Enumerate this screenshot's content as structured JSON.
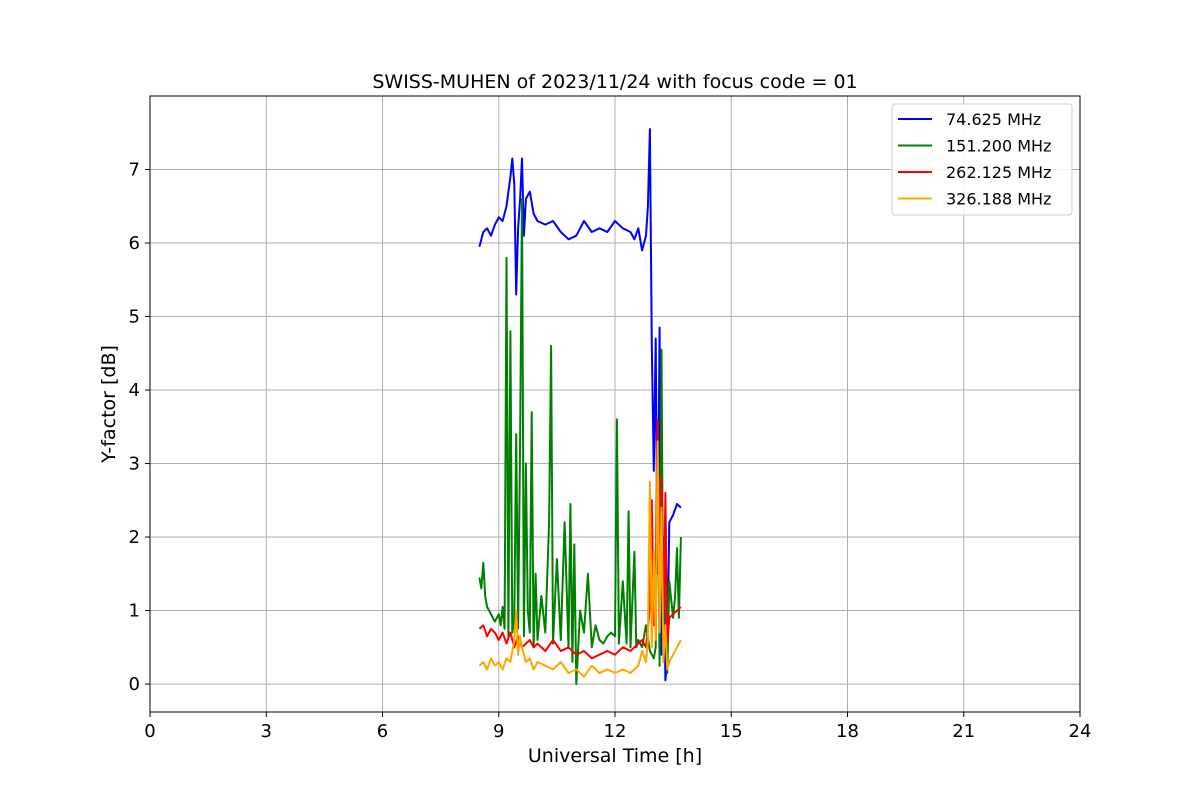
{
  "chart_data": {
    "type": "line",
    "title": "SWISS-MUHEN of 2023/11/24 with focus code = 01",
    "xlabel": "Universal Time [h]",
    "ylabel": "Y-factor [dB]",
    "xlim": [
      0,
      24
    ],
    "ylim": [
      -0.38,
      8.0
    ],
    "xticks": [
      0,
      3,
      6,
      9,
      12,
      15,
      18,
      21,
      24
    ],
    "yticks": [
      0,
      1,
      2,
      3,
      4,
      5,
      6,
      7
    ],
    "grid": true,
    "legend": "top-right",
    "series": [
      {
        "name": " 74.625 MHz",
        "color": "#0000ff",
        "x": [
          8.5,
          8.6,
          8.7,
          8.8,
          8.9,
          9.0,
          9.1,
          9.2,
          9.3,
          9.35,
          9.4,
          9.45,
          9.5,
          9.55,
          9.6,
          9.65,
          9.7,
          9.8,
          9.9,
          10.0,
          10.2,
          10.4,
          10.6,
          10.8,
          11.0,
          11.2,
          11.4,
          11.6,
          11.8,
          12.0,
          12.2,
          12.4,
          12.5,
          12.6,
          12.7,
          12.8,
          12.85,
          12.9,
          12.95,
          13.0,
          13.05,
          13.1,
          13.15,
          13.2,
          13.25,
          13.3,
          13.35,
          13.4,
          13.5,
          13.6,
          13.7
        ],
        "y": [
          5.95,
          6.15,
          6.2,
          6.1,
          6.25,
          6.35,
          6.3,
          6.5,
          6.9,
          7.15,
          6.8,
          5.3,
          6.2,
          6.6,
          7.15,
          6.1,
          6.6,
          6.7,
          6.4,
          6.3,
          6.25,
          6.3,
          6.15,
          6.05,
          6.1,
          6.3,
          6.15,
          6.2,
          6.15,
          6.3,
          6.2,
          6.15,
          6.05,
          6.2,
          5.9,
          6.1,
          6.5,
          7.55,
          4.6,
          2.9,
          4.7,
          1.5,
          4.85,
          0.4,
          2.0,
          0.05,
          0.35,
          2.2,
          2.3,
          2.45,
          2.4
        ]
      },
      {
        "name": "151.200 MHz",
        "color": "#008000",
        "x": [
          8.5,
          8.55,
          8.6,
          8.65,
          8.7,
          8.8,
          8.9,
          9.0,
          9.05,
          9.1,
          9.15,
          9.2,
          9.25,
          9.3,
          9.35,
          9.4,
          9.45,
          9.5,
          9.55,
          9.6,
          9.65,
          9.7,
          9.75,
          9.8,
          9.85,
          9.9,
          9.95,
          10.0,
          10.1,
          10.2,
          10.3,
          10.35,
          10.4,
          10.5,
          10.6,
          10.7,
          10.8,
          10.85,
          10.9,
          10.95,
          11.0,
          11.05,
          11.1,
          11.2,
          11.3,
          11.4,
          11.5,
          11.6,
          11.7,
          11.8,
          11.9,
          12.0,
          12.05,
          12.1,
          12.2,
          12.3,
          12.35,
          12.4,
          12.5,
          12.55,
          12.6,
          12.7,
          12.8,
          12.9,
          13.0,
          13.05,
          13.1,
          13.15,
          13.2,
          13.25,
          13.3,
          13.35,
          13.4,
          13.5,
          13.55,
          13.6,
          13.65,
          13.7
        ],
        "y": [
          1.45,
          1.3,
          1.65,
          1.2,
          1.05,
          0.95,
          0.85,
          0.95,
          0.8,
          1.05,
          0.75,
          5.8,
          0.65,
          4.8,
          0.7,
          0.9,
          3.4,
          0.75,
          3.3,
          6.6,
          0.65,
          3.0,
          1.0,
          0.7,
          3.7,
          0.5,
          1.5,
          0.6,
          1.2,
          0.7,
          2.2,
          4.6,
          0.55,
          1.7,
          0.6,
          2.2,
          0.5,
          2.45,
          0.3,
          1.9,
          0.0,
          0.5,
          1.0,
          0.7,
          1.5,
          0.5,
          0.8,
          0.6,
          0.55,
          0.65,
          0.7,
          0.65,
          3.6,
          0.55,
          1.4,
          0.55,
          2.35,
          0.5,
          1.8,
          0.5,
          0.6,
          0.5,
          0.8,
          0.45,
          0.35,
          0.5,
          3.3,
          0.25,
          4.55,
          0.3,
          2.3,
          0.15,
          1.4,
          0.9,
          1.2,
          1.85,
          0.9,
          2.0
        ]
      },
      {
        "name": "262.125 MHz",
        "color": "#ff0000",
        "x": [
          8.5,
          8.6,
          8.7,
          8.8,
          8.9,
          9.0,
          9.1,
          9.2,
          9.3,
          9.4,
          9.5,
          9.6,
          9.7,
          9.8,
          9.9,
          10.0,
          10.2,
          10.4,
          10.6,
          10.8,
          11.0,
          11.2,
          11.4,
          11.6,
          11.8,
          12.0,
          12.2,
          12.4,
          12.6,
          12.7,
          12.8,
          12.9,
          12.95,
          13.0,
          13.05,
          13.1,
          13.15,
          13.2,
          13.25,
          13.3,
          13.35,
          13.4,
          13.5,
          13.6,
          13.7
        ],
        "y": [
          0.75,
          0.8,
          0.65,
          0.75,
          0.7,
          0.6,
          0.7,
          0.55,
          0.7,
          0.5,
          0.65,
          0.5,
          0.55,
          0.6,
          0.5,
          0.55,
          0.45,
          0.6,
          0.45,
          0.5,
          0.4,
          0.45,
          0.35,
          0.4,
          0.45,
          0.4,
          0.5,
          0.45,
          0.55,
          0.6,
          0.5,
          1.05,
          2.5,
          0.8,
          1.6,
          3.6,
          1.3,
          2.8,
          0.7,
          2.6,
          0.55,
          0.9,
          0.95,
          1.0,
          1.05
        ]
      },
      {
        "name": "326.188 MHz",
        "color": "#ffa500",
        "x": [
          8.5,
          8.6,
          8.7,
          8.8,
          8.9,
          9.0,
          9.1,
          9.2,
          9.3,
          9.4,
          9.45,
          9.5,
          9.55,
          9.6,
          9.7,
          9.8,
          9.9,
          10.0,
          10.2,
          10.4,
          10.6,
          10.8,
          11.0,
          11.2,
          11.4,
          11.6,
          11.8,
          12.0,
          12.2,
          12.4,
          12.6,
          12.7,
          12.8,
          12.85,
          12.9,
          12.95,
          13.0,
          13.05,
          13.1,
          13.15,
          13.2,
          13.25,
          13.3,
          13.35,
          13.4,
          13.5,
          13.6,
          13.7
        ],
        "y": [
          0.25,
          0.3,
          0.2,
          0.35,
          0.25,
          0.3,
          0.2,
          0.35,
          0.3,
          0.6,
          1.0,
          0.4,
          0.65,
          0.5,
          0.3,
          0.35,
          0.2,
          0.3,
          0.25,
          0.2,
          0.3,
          0.15,
          0.2,
          0.1,
          0.25,
          0.15,
          0.2,
          0.15,
          0.2,
          0.15,
          0.25,
          0.45,
          0.3,
          0.6,
          2.75,
          0.5,
          1.8,
          0.6,
          3.3,
          0.7,
          2.4,
          0.3,
          0.8,
          0.2,
          0.3,
          0.4,
          0.5,
          0.6
        ]
      }
    ]
  }
}
